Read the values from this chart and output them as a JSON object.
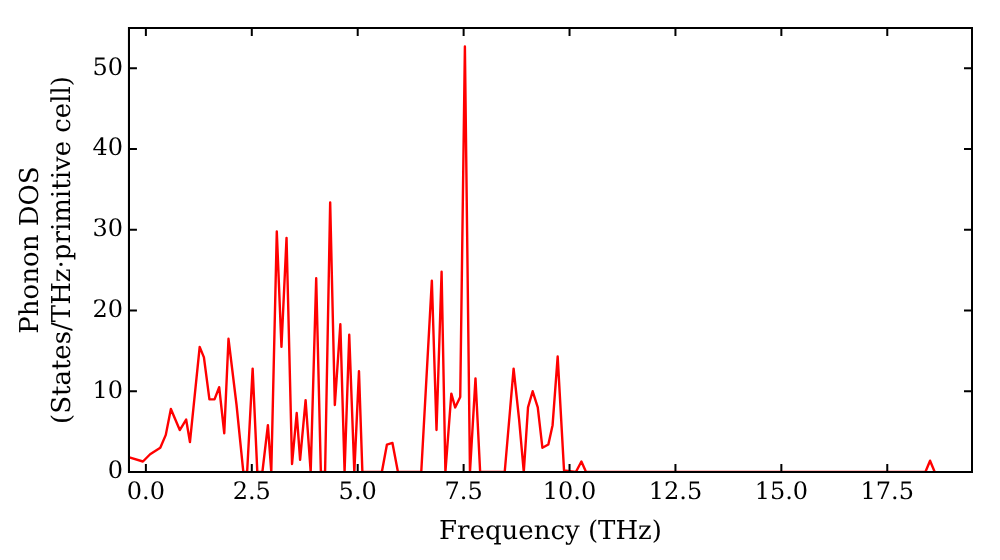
{
  "chart_data": {
    "type": "line",
    "xlabel": "Frequency (THz)",
    "ylabel": "Phonon DOS\n(States/THz·primitive cell)",
    "x": [
      -0.39,
      -0.07,
      0.1,
      0.34,
      0.47,
      0.59,
      0.8,
      0.95,
      1.04,
      1.27,
      1.37,
      1.5,
      1.62,
      1.73,
      1.85,
      1.95,
      2.14,
      2.3,
      2.39,
      2.52,
      2.63,
      2.75,
      2.88,
      2.96,
      3.09,
      3.2,
      3.32,
      3.45,
      3.56,
      3.64,
      3.77,
      3.89,
      4.02,
      4.13,
      4.23,
      4.35,
      4.46,
      4.59,
      4.69,
      4.8,
      4.92,
      5.03,
      5.11,
      5.57,
      5.69,
      5.82,
      5.95,
      6.5,
      6.75,
      6.86,
      6.98,
      7.07,
      7.21,
      7.3,
      7.42,
      7.53,
      7.65,
      7.78,
      7.89,
      8.47,
      8.68,
      8.81,
      8.92,
      9.02,
      9.13,
      9.25,
      9.36,
      9.5,
      9.6,
      9.72,
      9.87,
      10.15,
      10.28,
      10.39,
      18.4,
      18.51,
      18.62
    ],
    "series": [
      {
        "color": "#ff0000",
        "values": [
          1.8,
          1.3,
          2.2,
          3.0,
          4.6,
          7.8,
          5.2,
          6.5,
          3.7,
          15.5,
          14.2,
          9,
          9,
          10.5,
          4.8,
          16.5,
          8.3,
          0,
          0,
          12.8,
          0,
          0,
          5.8,
          0,
          29.8,
          15.5,
          29,
          1,
          7.3,
          1.5,
          8.9,
          0,
          24,
          0,
          0,
          33.4,
          8.3,
          18.3,
          0,
          17,
          0,
          12.5,
          0,
          0,
          3.4,
          3.6,
          0,
          0,
          23.7,
          5.2,
          24.8,
          0,
          9.7,
          8,
          9.3,
          52.7,
          0,
          11.6,
          0,
          0,
          12.8,
          6.5,
          0,
          8,
          10,
          8,
          3,
          3.4,
          5.8,
          14.3,
          0.2,
          0,
          1.3,
          0,
          0,
          1.4,
          0
        ]
      }
    ],
    "xlim": [
      -0.4,
      19.5
    ],
    "ylim": [
      0,
      55
    ],
    "xticks": [
      {
        "value": 0,
        "label": "0.0"
      },
      {
        "value": 2.5,
        "label": "2.5"
      },
      {
        "value": 5,
        "label": "5.0"
      },
      {
        "value": 7.5,
        "label": "7.5"
      },
      {
        "value": 10,
        "label": "10.0"
      },
      {
        "value": 12.5,
        "label": "12.5"
      },
      {
        "value": 15,
        "label": "15.0"
      },
      {
        "value": 17.5,
        "label": "17.5"
      }
    ],
    "yticks": [
      0,
      10,
      20,
      30,
      40,
      50
    ],
    "grid": false,
    "legend": false,
    "marker": "none",
    "line_style": "solid"
  }
}
